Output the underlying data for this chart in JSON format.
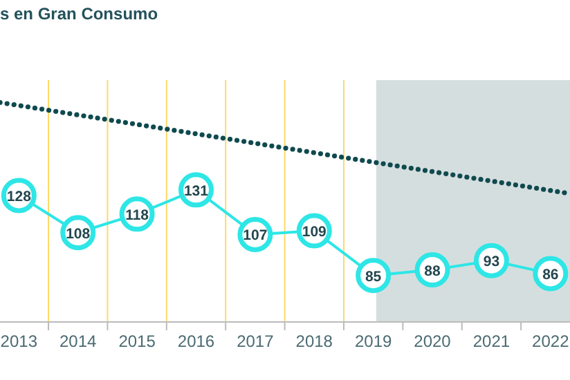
{
  "chart_data": {
    "type": "line",
    "title": "s en Gran Consumo",
    "xlim": [
      2012.68,
      2022.33
    ],
    "xticks": [
      2013,
      {
        "value": 2013.5,
        "label": null
      },
      2014,
      {
        "value": 2014.5,
        "label": null
      },
      2015,
      {
        "value": 2015.5,
        "label": null
      },
      2016,
      {
        "value": 2016.5,
        "label": null
      },
      2017,
      {
        "value": 2017.5,
        "label": null
      },
      2018,
      {
        "value": 2018.5,
        "label": null
      },
      2019,
      {
        "value": 2019.5,
        "label": null
      },
      2020,
      {
        "value": 2020.5,
        "label": null
      },
      2021,
      {
        "value": 2021.5,
        "label": null
      },
      2022
    ],
    "ylim": [
      60,
      190
    ],
    "tick_labels": "x",
    "grid": "x",
    "series": [
      {
        "color": "#2ee6e6",
        "marker": "circle",
        "line_style": "solid",
        "x": [
          2013,
          2014,
          2015,
          2016,
          2017,
          2018,
          2019,
          2020,
          2021,
          2022
        ],
        "values": [
          128,
          108,
          118,
          131,
          107,
          109,
          85,
          88,
          93,
          86
        ],
        "value_labels": [
          "128",
          "108",
          "118",
          "131",
          "107",
          "109",
          "85",
          "88",
          "93",
          "86"
        ]
      },
      {
        "color": "#0f4a4f",
        "marker": "none",
        "line_style": "dotted",
        "x": [
          2012.68,
          2022.33
        ],
        "values": [
          178,
          129
        ]
      }
    ],
    "bands": [
      {
        "axis": "x",
        "from": 2019.05,
        "to": 2022.33,
        "color": "#d5dede"
      }
    ]
  }
}
